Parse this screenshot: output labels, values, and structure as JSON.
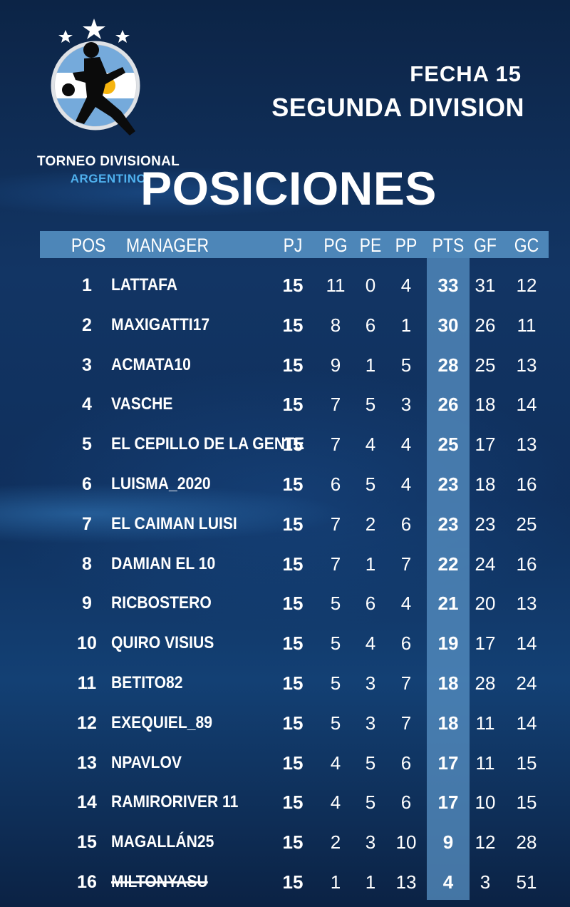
{
  "logo": {
    "line1": "TORNEO DIVISIONAL",
    "line2": "ARGENTINO",
    "accent": "#4fb1ee"
  },
  "header": {
    "fecha": "FECHA 15",
    "division": "SEGUNDA DIVISION",
    "title": "POSICIONES"
  },
  "columns": {
    "pos": "POS",
    "manager": "MANAGER",
    "pj": "PJ",
    "pg": "PG",
    "pe": "PE",
    "pp": "PP",
    "pts": "PTS",
    "gf": "GF",
    "gc": "GC"
  },
  "rows": [
    {
      "pos": "1",
      "manager": "LATTAFA",
      "pj": "15",
      "pg": "11",
      "pe": "0",
      "pp": "4",
      "pts": "33",
      "gf": "31",
      "gc": "12"
    },
    {
      "pos": "2",
      "manager": "MAXIGATTI17",
      "pj": "15",
      "pg": "8",
      "pe": "6",
      "pp": "1",
      "pts": "30",
      "gf": "26",
      "gc": "11"
    },
    {
      "pos": "3",
      "manager": "ACMATA10",
      "pj": "15",
      "pg": "9",
      "pe": "1",
      "pp": "5",
      "pts": "28",
      "gf": "25",
      "gc": "13"
    },
    {
      "pos": "4",
      "manager": "VASCHE",
      "pj": "15",
      "pg": "7",
      "pe": "5",
      "pp": "3",
      "pts": "26",
      "gf": "18",
      "gc": "14"
    },
    {
      "pos": "5",
      "manager": "EL CEPILLO DE LA GENTE",
      "pj": "15",
      "pg": "7",
      "pe": "4",
      "pp": "4",
      "pts": "25",
      "gf": "17",
      "gc": "13"
    },
    {
      "pos": "6",
      "manager": "LUISMA_2020",
      "pj": "15",
      "pg": "6",
      "pe": "5",
      "pp": "4",
      "pts": "23",
      "gf": "18",
      "gc": "16"
    },
    {
      "pos": "7",
      "manager": "EL CAIMAN LUISI",
      "pj": "15",
      "pg": "7",
      "pe": "2",
      "pp": "6",
      "pts": "23",
      "gf": "23",
      "gc": "25"
    },
    {
      "pos": "8",
      "manager": "DAMIAN EL 10",
      "pj": "15",
      "pg": "7",
      "pe": "1",
      "pp": "7",
      "pts": "22",
      "gf": "24",
      "gc": "16"
    },
    {
      "pos": "9",
      "manager": "RICBOSTERO",
      "pj": "15",
      "pg": "5",
      "pe": "6",
      "pp": "4",
      "pts": "21",
      "gf": "20",
      "gc": "13"
    },
    {
      "pos": "10",
      "manager": "QUIRO VISIUS",
      "pj": "15",
      "pg": "5",
      "pe": "4",
      "pp": "6",
      "pts": "19",
      "gf": "17",
      "gc": "14"
    },
    {
      "pos": "11",
      "manager": "BETITO82",
      "pj": "15",
      "pg": "5",
      "pe": "3",
      "pp": "7",
      "pts": "18",
      "gf": "28",
      "gc": "24"
    },
    {
      "pos": "12",
      "manager": "EXEQUIEL_89",
      "pj": "15",
      "pg": "5",
      "pe": "3",
      "pp": "7",
      "pts": "18",
      "gf": "11",
      "gc": "14"
    },
    {
      "pos": "13",
      "manager": "NPAVLOV",
      "pj": "15",
      "pg": "4",
      "pe": "5",
      "pp": "6",
      "pts": "17",
      "gf": "11",
      "gc": "15"
    },
    {
      "pos": "14",
      "manager": "RAMIRORIVER 11",
      "pj": "15",
      "pg": "4",
      "pe": "5",
      "pp": "6",
      "pts": "17",
      "gf": "10",
      "gc": "15"
    },
    {
      "pos": "15",
      "manager": "MAGALLÁN25",
      "pj": "15",
      "pg": "2",
      "pe": "3",
      "pp": "10",
      "pts": "9",
      "gf": "12",
      "gc": "28"
    },
    {
      "pos": "16",
      "manager": "MILTONYASU",
      "pj": "15",
      "pg": "1",
      "pe": "1",
      "pp": "13",
      "pts": "4",
      "gf": "3",
      "gc": "51",
      "struck": true
    }
  ],
  "colors": {
    "header_bar": "#4d86b8",
    "pts_column": "#5892c4",
    "background": "#0f2c55"
  }
}
